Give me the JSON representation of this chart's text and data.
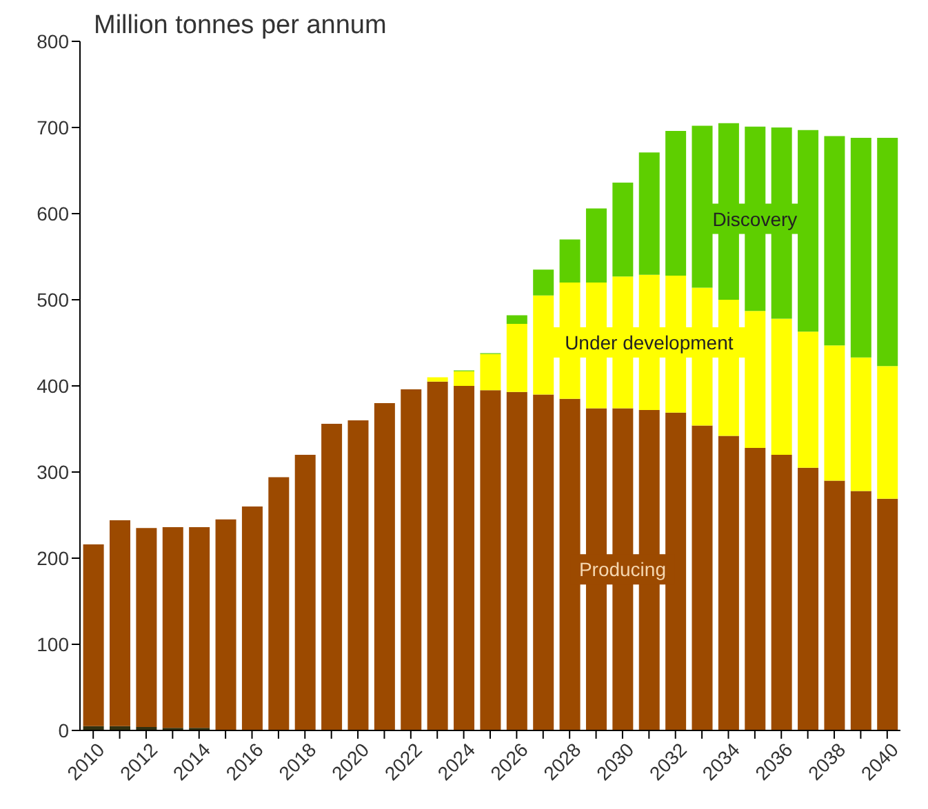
{
  "chart_data": {
    "type": "bar",
    "ylabel": "Million tonnes per annum",
    "stacked": true,
    "legend": false,
    "grid": false,
    "categories": [
      "2010",
      null,
      "2012",
      null,
      "2014",
      null,
      "2016",
      null,
      "2018",
      null,
      "2020",
      null,
      "2022",
      null,
      "2024",
      null,
      "2026",
      null,
      "2028",
      null,
      "2030",
      null,
      "2032",
      null,
      "2034",
      null,
      "2036",
      null,
      "2038",
      null,
      "2040"
    ],
    "series": [
      {
        "color": "#2f3010",
        "values": [
          5,
          5,
          4,
          3,
          3,
          0,
          0,
          0,
          0,
          0,
          0,
          0,
          0,
          0,
          0,
          0,
          0,
          0,
          0,
          0,
          0,
          0,
          0,
          0,
          0,
          0,
          0,
          0,
          0,
          0,
          0
        ]
      },
      {
        "name": "Producing",
        "color": "#9c4a00",
        "values": [
          211,
          239,
          231,
          233,
          233,
          245,
          260,
          294,
          320,
          356,
          360,
          380,
          396,
          405,
          400,
          395,
          393,
          390,
          385,
          374,
          374,
          372,
          369,
          354,
          342,
          328,
          320,
          305,
          290,
          278,
          269
        ]
      },
      {
        "name": "Under development",
        "color": "#ffff00",
        "values": [
          0,
          0,
          0,
          0,
          0,
          0,
          0,
          0,
          0,
          0,
          0,
          0,
          0,
          5,
          17,
          42,
          79,
          115,
          135,
          146,
          153,
          157,
          159,
          160,
          158,
          159,
          158,
          158,
          157,
          155,
          154
        ]
      },
      {
        "name": "Discovery",
        "color": "#5ecf00",
        "values": [
          0,
          0,
          0,
          0,
          0,
          0,
          0,
          0,
          0,
          0,
          0,
          0,
          0,
          0,
          1,
          1,
          10,
          30,
          50,
          86,
          109,
          142,
          168,
          188,
          205,
          214,
          222,
          234,
          243,
          255,
          265
        ]
      }
    ],
    "ylim": [
      0,
      800
    ],
    "yticks": [
      0,
      100,
      200,
      300,
      400,
      500,
      600,
      700,
      800
    ]
  }
}
